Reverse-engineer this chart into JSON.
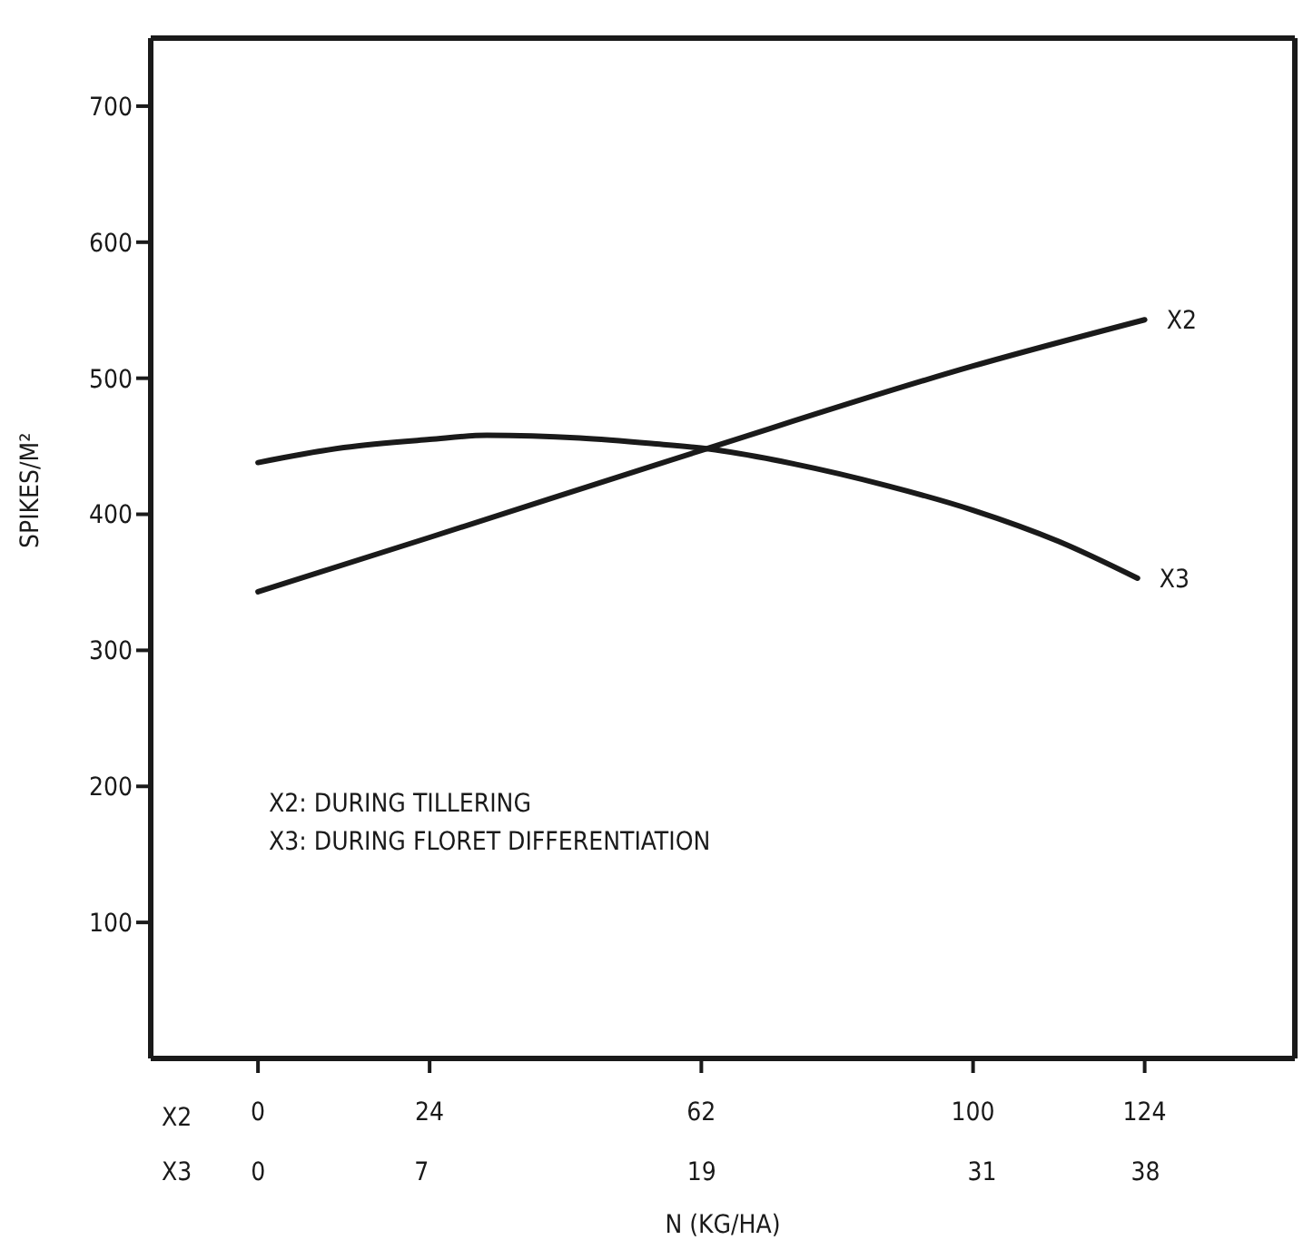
{
  "chart_data": {
    "type": "line",
    "ylabel": "SPIKES/M²",
    "xlabel": "N (KG/HA)",
    "annotations": [
      "X2",
      "X3",
      "X2: DURING TILLERING",
      "X3: DURING FLORET DIFFERENTIATION"
    ],
    "xlim": [
      -15,
      145
    ],
    "xticks": [
      0,
      24,
      62,
      100,
      124
    ],
    "x2lim": [
      -4.6,
      44.4
    ],
    "x2ticks": [
      0,
      7,
      19,
      31,
      38
    ],
    "ylim": [
      0,
      750
    ],
    "yticks": [
      100,
      200,
      300,
      400,
      500,
      600,
      700
    ],
    "grid": false,
    "legend": false,
    "marker": "none",
    "line_style": "solid",
    "series": [
      {
        "name": "X2",
        "color": "#1a1a1a",
        "x": [
          0,
          24,
          62,
          100,
          124
        ],
        "values": [
          343,
          383,
          447,
          509,
          543
        ]
      },
      {
        "name": "X3",
        "color": "#1a1a1a",
        "x": [
          0,
          12,
          24,
          32,
          45,
          55,
          63,
          75,
          88,
          100,
          112,
          123
        ],
        "values": [
          438,
          449,
          455,
          458,
          456,
          452,
          448,
          437,
          421,
          403,
          380,
          353
        ]
      }
    ]
  }
}
